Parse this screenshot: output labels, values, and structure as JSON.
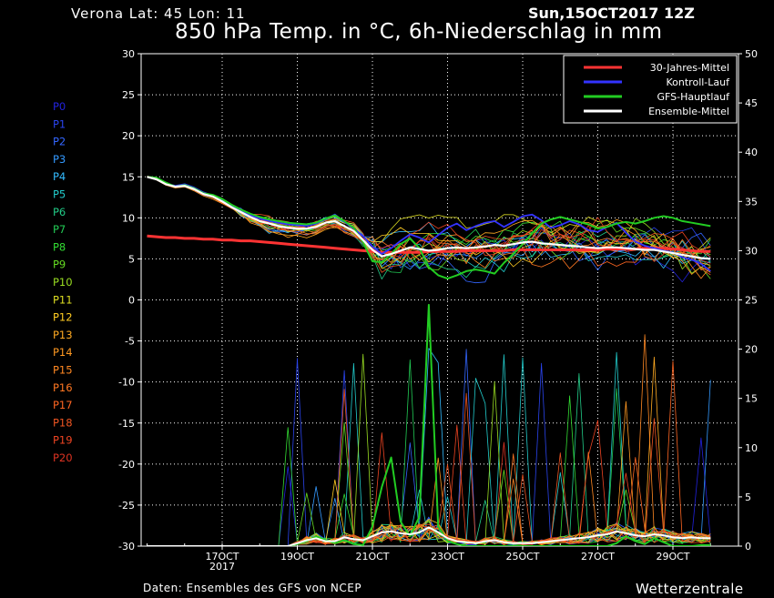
{
  "header": {
    "location": "Verona   Lat: 45 Lon: 11",
    "date": "Sun,15OCT2017 12Z",
    "title": "850 hPa Temp. in °C, 6h-Niederschlag in mm"
  },
  "footer": {
    "source": "Daten: Ensembles des GFS von NCEP",
    "brand": "Wetterzentrale"
  },
  "chart_data": {
    "type": "line",
    "title": "850 hPa Temp. in °C, 6h-Niederschlag in mm",
    "x_start_label": "15OCT2017 12Z",
    "x_step_hours": 6,
    "x_ticks": [
      {
        "day": 2,
        "label": "17OCT",
        "sublabel": "2017"
      },
      {
        "day": 4,
        "label": "19OCT"
      },
      {
        "day": 6,
        "label": "21OCT"
      },
      {
        "day": 8,
        "label": "23OCT"
      },
      {
        "day": 10,
        "label": "25OCT"
      },
      {
        "day": 12,
        "label": "27OCT"
      },
      {
        "day": 14,
        "label": "29OCT"
      }
    ],
    "ylim_left": [
      -30,
      30
    ],
    "y_ticks_left": [
      30,
      25,
      20,
      15,
      10,
      5,
      0,
      -5,
      -10,
      -15,
      -20,
      -25,
      -30
    ],
    "ylim_right": [
      0,
      50
    ],
    "y_ticks_right": [
      50,
      45,
      40,
      35,
      30,
      25,
      20,
      15,
      10,
      5,
      0
    ],
    "grid": true,
    "legend": {
      "position": "top-right",
      "entries": [
        {
          "name": "30-Jahres-Mittel",
          "color": "#ff3333"
        },
        {
          "name": "Kontroll-Lauf",
          "color": "#3333ff"
        },
        {
          "name": "GFS-Hauptlauf",
          "color": "#22cc22"
        },
        {
          "name": "Ensemble-Mittel",
          "color": "#ffffff"
        }
      ]
    },
    "members": [
      {
        "name": "P0",
        "color": "#2222dd"
      },
      {
        "name": "P1",
        "color": "#2a44ee"
      },
      {
        "name": "P2",
        "color": "#3366ff"
      },
      {
        "name": "P3",
        "color": "#3399ff"
      },
      {
        "name": "P4",
        "color": "#33bbff"
      },
      {
        "name": "P5",
        "color": "#22cccc"
      },
      {
        "name": "P6",
        "color": "#22cc88"
      },
      {
        "name": "P7",
        "color": "#22cc55"
      },
      {
        "name": "P8",
        "color": "#33dd33"
      },
      {
        "name": "P9",
        "color": "#66dd22"
      },
      {
        "name": "P10",
        "color": "#99dd22"
      },
      {
        "name": "P11",
        "color": "#dddd22"
      },
      {
        "name": "P12",
        "color": "#ffcc22"
      },
      {
        "name": "P13",
        "color": "#ffaa22"
      },
      {
        "name": "P14",
        "color": "#ff9922"
      },
      {
        "name": "P15",
        "color": "#ff8822"
      },
      {
        "name": "P16",
        "color": "#ff7722"
      },
      {
        "name": "P17",
        "color": "#ff6622"
      },
      {
        "name": "P18",
        "color": "#ee5522"
      },
      {
        "name": "P19",
        "color": "#ee4422"
      },
      {
        "name": "P20",
        "color": "#dd3322"
      }
    ],
    "series": {
      "climate_mean_temp": [
        7.8,
        7.7,
        7.6,
        7.6,
        7.5,
        7.5,
        7.4,
        7.4,
        7.3,
        7.3,
        7.2,
        7.2,
        7.1,
        7.0,
        6.9,
        6.8,
        6.7,
        6.6,
        6.5,
        6.4,
        6.3,
        6.2,
        6.1,
        6.0,
        5.9,
        5.8,
        5.8,
        5.8,
        5.8,
        5.8,
        5.9,
        5.9,
        5.9,
        5.9,
        6.0,
        6.0,
        6.0,
        6.0,
        6.0,
        6.1,
        6.1,
        6.1,
        6.1,
        6.1,
        6.1,
        6.1,
        6.1,
        6.1,
        6.1,
        6.2,
        6.2,
        6.2,
        6.2,
        6.3,
        6.3,
        6.3,
        6.2,
        6.1,
        6.0,
        5.9,
        5.9
      ],
      "control_temp": [
        15,
        14.8,
        14.2,
        13.9,
        14.1,
        13.7,
        13.1,
        12.7,
        12.2,
        11.5,
        10.9,
        10.3,
        9.9,
        9.6,
        9.4,
        9.2,
        9.1,
        9.0,
        9.3,
        9.8,
        10.4,
        9.5,
        8.7,
        7.8,
        6.5,
        5.6,
        6.3,
        7.2,
        8.0,
        7.6,
        7.0,
        7.9,
        8.8,
        9.3,
        8.5,
        9.0,
        9.4,
        9.6,
        8.9,
        9.5,
        10.2,
        10.4,
        9.7,
        8.8,
        9.1,
        9.6,
        9.2,
        8.5,
        8.3,
        8.9,
        9.4,
        8.2,
        7.1,
        6.6,
        6.3,
        6.0,
        5.8,
        5.2,
        4.9,
        4.4,
        3.5
      ],
      "main_temp": [
        15,
        14.9,
        14.3,
        13.8,
        14.0,
        13.6,
        13.0,
        12.8,
        12.3,
        11.6,
        11.0,
        10.5,
        10.1,
        9.8,
        9.6,
        9.4,
        9.3,
        9.2,
        9.4,
        9.9,
        10.3,
        9.6,
        8.8,
        7.0,
        4.7,
        4.6,
        5.6,
        6.8,
        7.5,
        6.3,
        4.0,
        3.0,
        2.6,
        3.0,
        3.5,
        3.7,
        3.5,
        3.2,
        4.5,
        5.6,
        6.8,
        8.1,
        9.3,
        9.8,
        10.1,
        9.8,
        9.5,
        9.2,
        8.7,
        8.9,
        9.3,
        9.5,
        9.3,
        9.6,
        10.0,
        10.2,
        10.0,
        9.6,
        9.4,
        9.2,
        9.0
      ],
      "ensemble_mean_temp": [
        15,
        14.7,
        14.1,
        13.8,
        13.9,
        13.5,
        12.9,
        12.6,
        12.0,
        11.3,
        10.7,
        10.1,
        9.6,
        9.3,
        9.0,
        8.8,
        8.7,
        8.7,
        8.9,
        9.4,
        9.6,
        9.0,
        8.4,
        7.3,
        6.1,
        5.3,
        5.6,
        6.0,
        6.4,
        6.2,
        6.0,
        6.1,
        6.3,
        6.4,
        6.3,
        6.4,
        6.5,
        6.7,
        6.6,
        6.8,
        7.0,
        7.1,
        6.9,
        6.8,
        6.7,
        6.6,
        6.5,
        6.4,
        6.3,
        6.4,
        6.4,
        6.3,
        6.2,
        6.1,
        6.1,
        5.9,
        5.7,
        5.5,
        5.3,
        5.1,
        5.0
      ],
      "main_precip": [
        0,
        0,
        0,
        0,
        0,
        0,
        0,
        0,
        0,
        0,
        0,
        0,
        0,
        0,
        0,
        0,
        0.2,
        0.5,
        1.0,
        0.6,
        0.3,
        0.6,
        0.2,
        0.1,
        2.0,
        6.0,
        9.0,
        2.5,
        1.0,
        3.0,
        24.5,
        2.0,
        0.5,
        0.2,
        0,
        0,
        0,
        0,
        0,
        0,
        0,
        0,
        0,
        0,
        0,
        0,
        0,
        0,
        0,
        0,
        0.3,
        1.0,
        0.5,
        0.2,
        0.8,
        0.4,
        0,
        0,
        0,
        0.1,
        0.1
      ],
      "ensemble_mean_precip": [
        0,
        0,
        0,
        0,
        0,
        0,
        0,
        0,
        0,
        0,
        0,
        0,
        0,
        0,
        0,
        0,
        0.3,
        0.6,
        0.8,
        0.5,
        0.5,
        0.9,
        0.7,
        0.6,
        1.0,
        1.4,
        1.5,
        1.3,
        1.2,
        1.4,
        1.9,
        1.4,
        0.8,
        0.5,
        0.4,
        0.3,
        0.5,
        0.6,
        0.4,
        0.3,
        0.3,
        0.3,
        0.4,
        0.5,
        0.6,
        0.7,
        0.8,
        0.9,
        1.1,
        1.2,
        1.5,
        1.3,
        1.1,
        1.0,
        1.2,
        1.1,
        0.9,
        0.8,
        0.9,
        0.8,
        0.8
      ]
    }
  }
}
